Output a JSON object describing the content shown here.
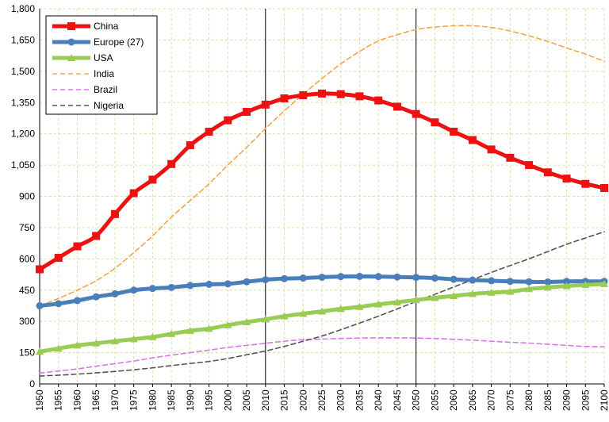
{
  "chart_data": {
    "type": "line",
    "title": "",
    "xlabel": "",
    "ylabel": "",
    "x": [
      1950,
      1955,
      1960,
      1965,
      1970,
      1975,
      1980,
      1985,
      1990,
      1995,
      2000,
      2005,
      2010,
      2015,
      2020,
      2025,
      2030,
      2035,
      2040,
      2045,
      2050,
      2055,
      2060,
      2065,
      2070,
      2075,
      2080,
      2085,
      2090,
      2095,
      2100
    ],
    "xlim": [
      1950,
      2100
    ],
    "ylim": [
      0,
      1800
    ],
    "y_ticks": [
      "0",
      "150",
      "300",
      "450",
      "600",
      "750",
      "900",
      "1,050",
      "1,200",
      "1,350",
      "1,500",
      "1,650",
      "1,800"
    ],
    "x_ticks": [
      "1950",
      "1955",
      "1960",
      "1965",
      "1970",
      "1975",
      "1980",
      "1985",
      "1990",
      "1995",
      "2000",
      "2005",
      "2010",
      "2015",
      "2020",
      "2025",
      "2030",
      "2035",
      "2040",
      "2045",
      "2050",
      "2055",
      "2060",
      "2065",
      "2070",
      "2075",
      "2080",
      "2085",
      "2090",
      "2095",
      "2100"
    ],
    "y_tick_values": [
      0,
      150,
      300,
      450,
      600,
      750,
      900,
      1050,
      1200,
      1350,
      1500,
      1650,
      1800
    ],
    "vertical_markers": [
      2010,
      2050
    ],
    "grid": true,
    "legend_position": "top-left",
    "series": [
      {
        "name": "China",
        "color": "#ee1111",
        "style": "solid-thick",
        "marker": "square",
        "values": [
          550,
          605,
          660,
          710,
          815,
          915,
          980,
          1055,
          1145,
          1210,
          1265,
          1305,
          1340,
          1370,
          1385,
          1393,
          1390,
          1380,
          1360,
          1330,
          1295,
          1255,
          1210,
          1170,
          1125,
          1085,
          1050,
          1015,
          985,
          960,
          940
        ]
      },
      {
        "name": "Europe (27)",
        "color": "#4a7ebb",
        "style": "solid-thick",
        "marker": "circle",
        "values": [
          375,
          385,
          400,
          418,
          432,
          450,
          458,
          463,
          472,
          478,
          480,
          490,
          500,
          505,
          508,
          512,
          515,
          516,
          515,
          513,
          511,
          508,
          502,
          498,
          495,
          492,
          490,
          489,
          492,
          492,
          492
        ]
      },
      {
        "name": "USA",
        "color": "#99cc55",
        "style": "solid-thick",
        "marker": "triangle",
        "values": [
          155,
          170,
          185,
          195,
          205,
          215,
          225,
          240,
          255,
          265,
          282,
          297,
          310,
          325,
          337,
          348,
          360,
          370,
          382,
          392,
          403,
          413,
          422,
          432,
          438,
          443,
          455,
          463,
          470,
          475,
          480
        ]
      },
      {
        "name": "India",
        "color": "#f5a54a",
        "style": "dashed",
        "values": [
          375,
          410,
          450,
          495,
          555,
          630,
          710,
          800,
          880,
          960,
          1050,
          1135,
          1225,
          1310,
          1390,
          1465,
          1535,
          1595,
          1645,
          1675,
          1700,
          1712,
          1718,
          1718,
          1710,
          1693,
          1670,
          1643,
          1612,
          1582,
          1548
        ]
      },
      {
        "name": "Brazil",
        "color": "#d977e8",
        "style": "dashed",
        "values": [
          52,
          62,
          72,
          85,
          97,
          110,
          125,
          138,
          150,
          162,
          175,
          185,
          195,
          205,
          212,
          215,
          218,
          220,
          221,
          221,
          220,
          218,
          214,
          210,
          205,
          200,
          196,
          190,
          185,
          180,
          178
        ]
      },
      {
        "name": "Nigeria",
        "color": "#555555",
        "style": "dashed",
        "values": [
          38,
          42,
          47,
          53,
          60,
          68,
          77,
          88,
          98,
          108,
          122,
          140,
          158,
          180,
          205,
          230,
          260,
          292,
          325,
          360,
          395,
          430,
          465,
          500,
          535,
          568,
          600,
          635,
          670,
          700,
          730
        ]
      }
    ]
  }
}
